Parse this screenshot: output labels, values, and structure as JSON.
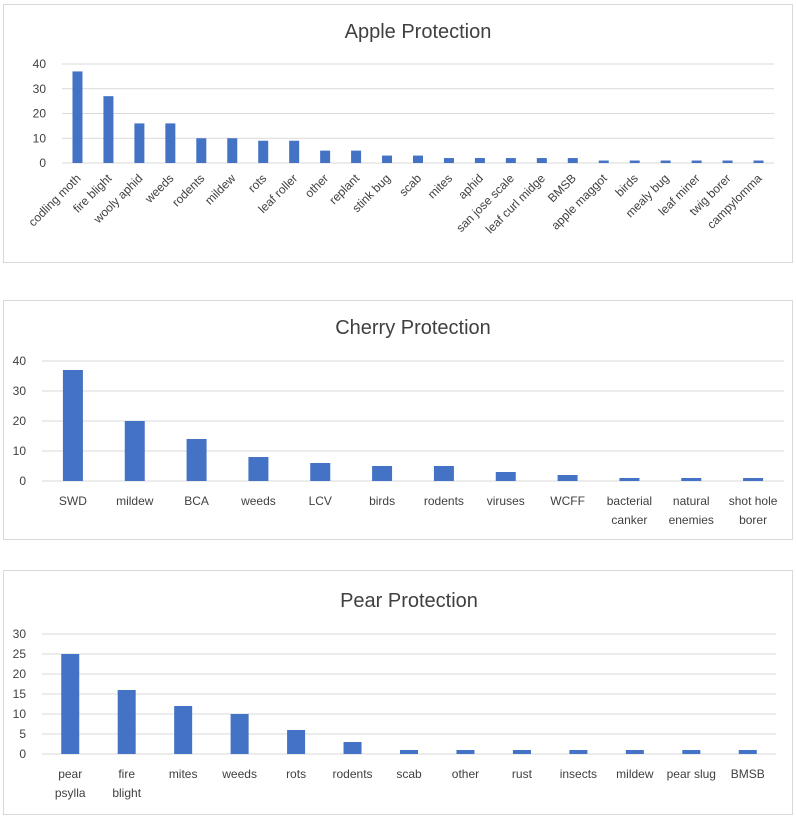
{
  "colors": {
    "bar": "#4472c4",
    "grid": "#d9d9d9",
    "text": "#404040",
    "border": "#d9d9d9"
  },
  "chart_data": [
    {
      "type": "bar",
      "title": "Apple Protection",
      "categories": [
        "codling moth",
        "fire blight",
        "wooly aphid",
        "weeds",
        "rodents",
        "mildew",
        "rots",
        "leaf roller",
        "other",
        "replant",
        "stink bug",
        "scab",
        "mites",
        "aphid",
        "san jose scale",
        "leaf curl midge",
        "BMSB",
        "apple maggot",
        "birds",
        "mealy bug",
        "leaf miner",
        "twig borer",
        "campylomma"
      ],
      "values": [
        37,
        27,
        16,
        16,
        10,
        10,
        9,
        9,
        5,
        5,
        3,
        3,
        2,
        2,
        2,
        2,
        2,
        1,
        1,
        1,
        1,
        1,
        1
      ],
      "yticks": [
        0,
        10,
        20,
        30,
        40
      ],
      "ylim": [
        0,
        40
      ],
      "grid": true,
      "xlabel": "",
      "ylabel": ""
    },
    {
      "type": "bar",
      "title": "Cherry Protection",
      "categories": [
        "SWD",
        "mildew",
        "BCA",
        "weeds",
        "LCV",
        "birds",
        "rodents",
        "viruses",
        "WCFF",
        "bacterial canker",
        "natural enemies",
        "shot hole borer"
      ],
      "category_lines": [
        [
          "SWD"
        ],
        [
          "mildew"
        ],
        [
          "BCA"
        ],
        [
          "weeds"
        ],
        [
          "LCV"
        ],
        [
          "birds"
        ],
        [
          "rodents"
        ],
        [
          "viruses"
        ],
        [
          "WCFF"
        ],
        [
          "bacterial",
          "canker"
        ],
        [
          "natural",
          "enemies"
        ],
        [
          "shot hole",
          "borer"
        ]
      ],
      "values": [
        37,
        20,
        14,
        8,
        6,
        5,
        5,
        3,
        2,
        1,
        1,
        1
      ],
      "yticks": [
        0,
        10,
        20,
        30,
        40
      ],
      "ylim": [
        0,
        40
      ],
      "grid": true,
      "xlabel": "",
      "ylabel": ""
    },
    {
      "type": "bar",
      "title": "Pear Protection",
      "categories": [
        "pear psylla",
        "fire blight",
        "mites",
        "weeds",
        "rots",
        "rodents",
        "scab",
        "other",
        "rust",
        "insects",
        "mildew",
        "pear slug",
        "BMSB"
      ],
      "category_lines": [
        [
          "pear",
          "psylla"
        ],
        [
          "fire",
          "blight"
        ],
        [
          "mites"
        ],
        [
          "weeds"
        ],
        [
          "rots"
        ],
        [
          "rodents"
        ],
        [
          "scab"
        ],
        [
          "other"
        ],
        [
          "rust"
        ],
        [
          "insects"
        ],
        [
          "mildew"
        ],
        [
          "pear slug"
        ],
        [
          "BMSB"
        ]
      ],
      "values": [
        25,
        16,
        12,
        10,
        6,
        3,
        1,
        1,
        1,
        1,
        1,
        1,
        1
      ],
      "yticks": [
        0,
        5,
        10,
        15,
        20,
        25,
        30
      ],
      "ylim": [
        0,
        30
      ],
      "grid": true,
      "xlabel": "",
      "ylabel": ""
    }
  ]
}
